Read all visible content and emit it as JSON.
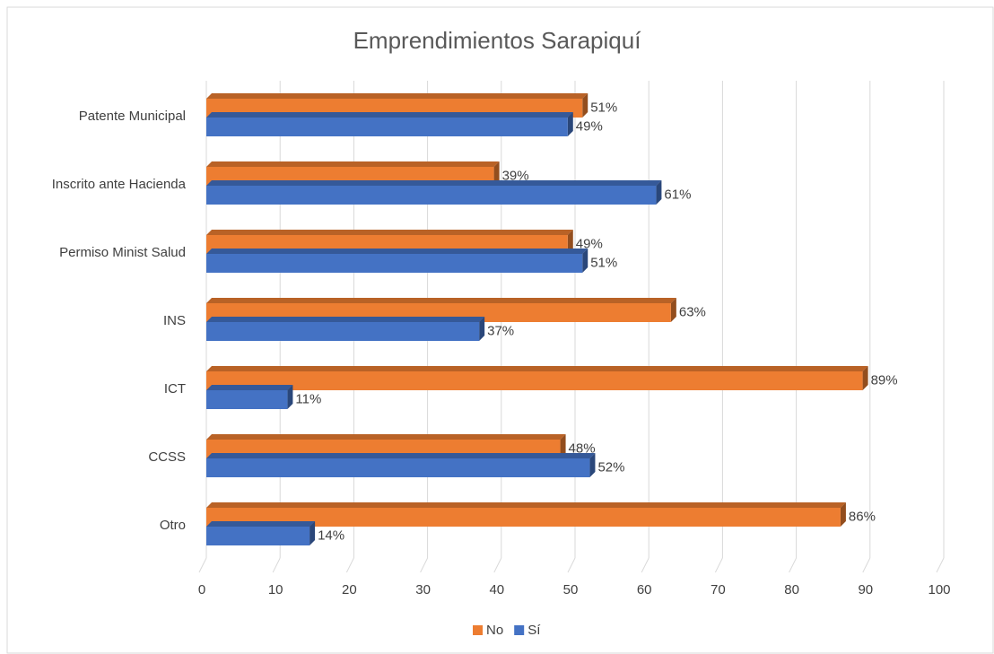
{
  "chart_data": {
    "type": "bar3d",
    "orientation": "horizontal",
    "title": "Emprendimientos Sarapiquí",
    "categories": [
      "Patente Municipal",
      "Inscrito ante Hacienda",
      "Permiso Minist Salud",
      "INS",
      "ICT",
      "CCSS",
      "Otro"
    ],
    "series": [
      {
        "name": "No",
        "color": "#ed7d31",
        "values": [
          51,
          39,
          49,
          63,
          89,
          48,
          86
        ],
        "value_labels": [
          "51%",
          "39%",
          "49%",
          "63%",
          "89%",
          "48%",
          "86%"
        ]
      },
      {
        "name": "Sí",
        "color": "#4472c4",
        "values": [
          49,
          61,
          51,
          37,
          11,
          52,
          14
        ],
        "value_labels": [
          "49%",
          "61%",
          "51%",
          "37%",
          "11%",
          "52%",
          "14%"
        ]
      }
    ],
    "xlim": [
      0,
      100
    ],
    "xticks": [
      0,
      10,
      20,
      30,
      40,
      50,
      60,
      70,
      80,
      90,
      100
    ],
    "grid": true,
    "legend": "bottom"
  }
}
